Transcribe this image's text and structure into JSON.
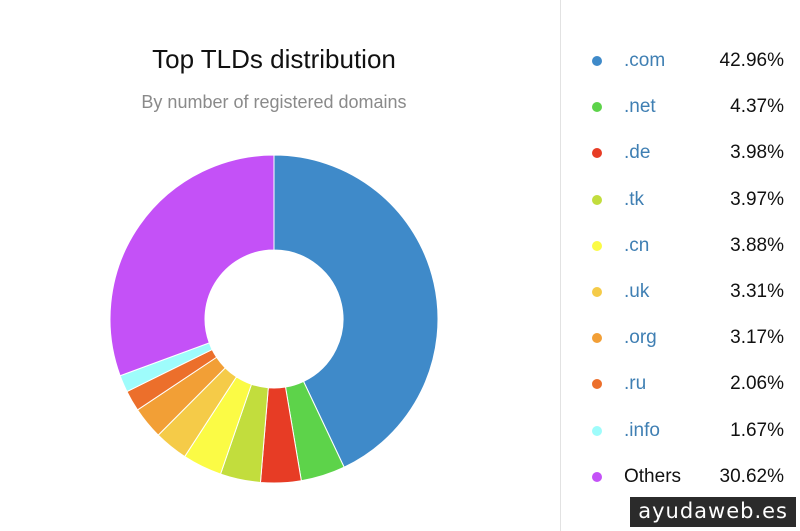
{
  "chart_data": {
    "type": "pie",
    "title": "Top TLDs distribution",
    "subtitle": "By number of registered domains",
    "donut": true,
    "legend_position": "right",
    "categories": [
      ".com",
      ".net",
      ".de",
      ".tk",
      ".cn",
      ".uk",
      ".org",
      ".ru",
      ".info",
      "Others"
    ],
    "values": [
      42.96,
      4.37,
      3.98,
      3.97,
      3.88,
      3.31,
      3.17,
      2.06,
      1.67,
      30.62
    ],
    "value_labels": [
      "42.96%",
      "4.37%",
      "3.98%",
      "3.97%",
      "3.88%",
      "3.31%",
      "3.17%",
      "2.06%",
      "1.67%",
      "30.62%"
    ],
    "colors": [
      "#3f8ac9",
      "#5dd34a",
      "#e73c25",
      "#c2dd3d",
      "#fbfb45",
      "#f5cb48",
      "#f29f36",
      "#ec6f2b",
      "#9efcfb",
      "#c451f7"
    ]
  },
  "watermark": "ayudaweb.es"
}
